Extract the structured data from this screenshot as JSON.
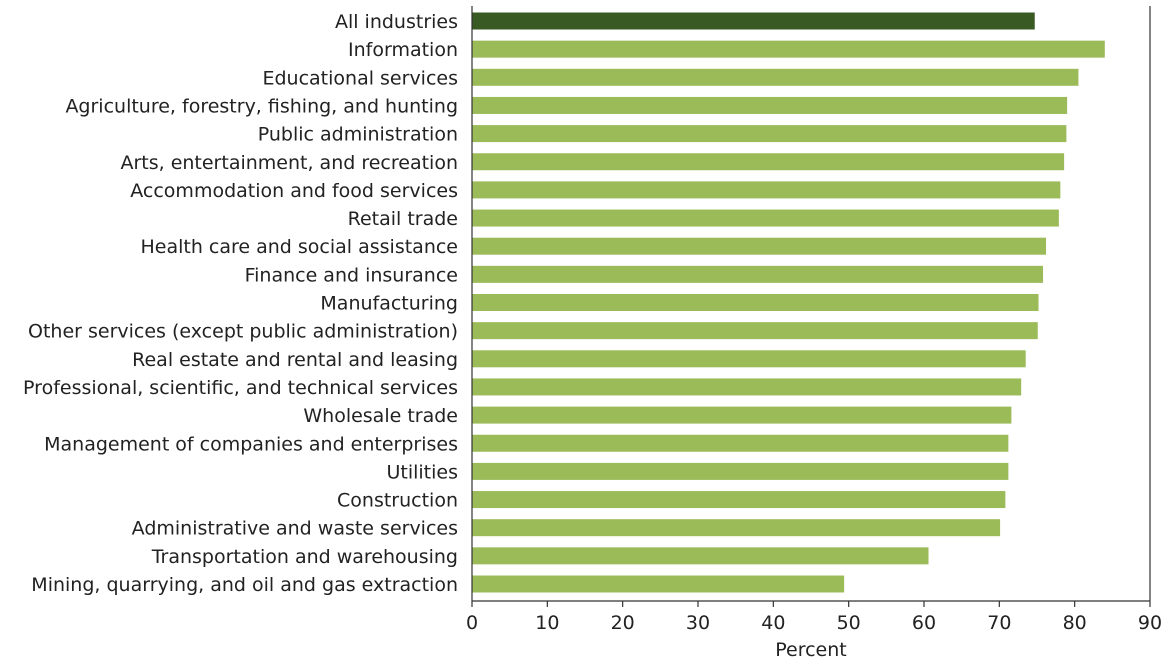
{
  "chart_data": {
    "type": "bar",
    "orientation": "horizontal",
    "categories": [
      "All industries",
      "Information",
      "Educational services",
      "Agriculture, forestry, fishing, and hunting",
      "Public administration",
      "Arts, entertainment, and recreation",
      "Accommodation and food services",
      "Retail trade",
      "Health care and social assistance",
      "Finance and insurance",
      "Manufacturing",
      "Other services (except public administration)",
      "Real estate and rental and leasing",
      "Professional, scientific, and technical services",
      "Wholesale trade",
      "Management of companies and enterprises",
      "Utilities",
      "Construction",
      "Administrative and waste services",
      "Transportation and warehousing",
      "Mining, quarrying, and oil and gas extraction"
    ],
    "values": [
      74.7,
      84.0,
      80.5,
      79.0,
      78.9,
      78.6,
      78.1,
      77.9,
      76.2,
      75.8,
      75.2,
      75.1,
      73.5,
      72.9,
      71.6,
      71.2,
      71.2,
      70.8,
      70.1,
      60.6,
      49.4
    ],
    "xlabel": "Percent",
    "xlim": [
      0,
      90
    ],
    "xticks": [
      0,
      10,
      20,
      30,
      40,
      50,
      60,
      70,
      80,
      90
    ],
    "grid": false,
    "colors": {
      "highlight": "#3a5a23",
      "bar": "#9bbb59",
      "axis": "#333333"
    },
    "highlight_index": 0
  }
}
